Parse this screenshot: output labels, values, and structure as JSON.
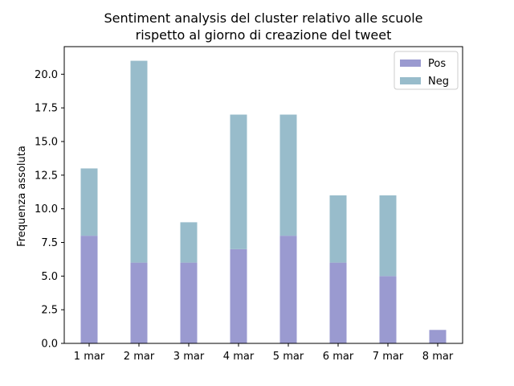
{
  "chart_data": {
    "type": "bar",
    "stacked": true,
    "title": [
      "Sentiment analysis del cluster relativo alle scuole",
      "rispetto al giorno di creazione del tweet"
    ],
    "xlabel": "",
    "ylabel": "Frequenza assoluta",
    "categories": [
      "1 mar",
      "2 mar",
      "3 mar",
      "4 mar",
      "5 mar",
      "6 mar",
      "7 mar",
      "8 mar"
    ],
    "series": [
      {
        "name": "Pos",
        "color": "#9a9ad0",
        "values": [
          8,
          6,
          6,
          7,
          8,
          6,
          5,
          1
        ]
      },
      {
        "name": "Neg",
        "color": "#98bccb",
        "values": [
          5,
          15,
          3,
          10,
          9,
          5,
          6,
          0
        ]
      }
    ],
    "ylim": [
      0,
      22.05
    ],
    "yticks": [
      "0.0",
      "2.5",
      "5.0",
      "7.5",
      "10.0",
      "12.5",
      "15.0",
      "17.5",
      "20.0"
    ],
    "grid": false,
    "legend_position": "top-right"
  }
}
